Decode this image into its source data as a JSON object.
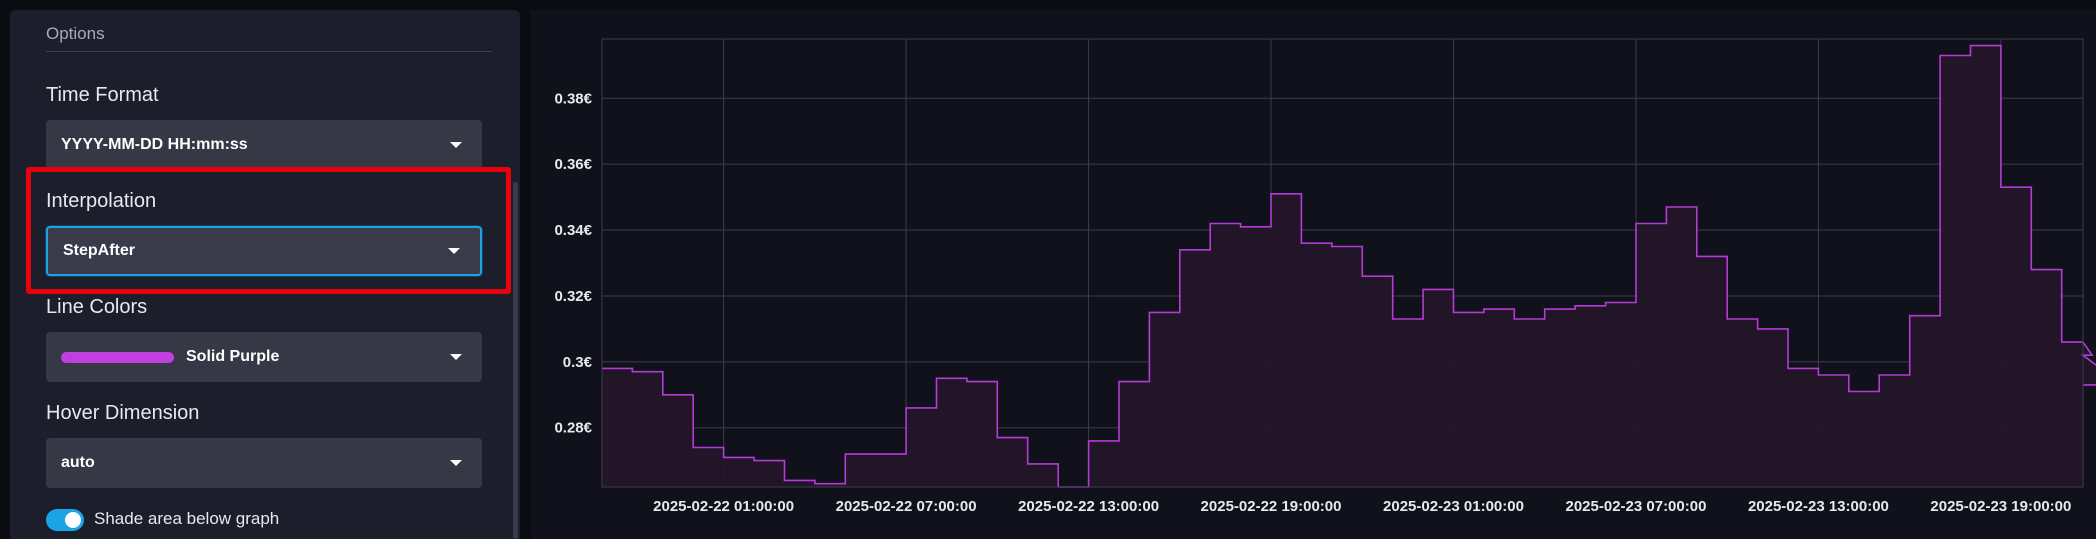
{
  "options": {
    "section_title": "Options",
    "time_format": {
      "label": "Time Format",
      "value": "YYYY-MM-DD HH:mm:ss"
    },
    "interpolation": {
      "label": "Interpolation",
      "value": "StepAfter"
    },
    "line_colors": {
      "label": "Line Colors",
      "value": "Solid Purple",
      "swatch_color": "#c13ee0"
    },
    "hover_dimension": {
      "label": "Hover Dimension",
      "value": "auto"
    },
    "shade_toggle": {
      "label": "Shade area below graph",
      "on": true
    }
  },
  "colors": {
    "accent": "#1aa4e6",
    "highlight": "#e8000d",
    "line": "#b43bd6",
    "fill": "#241629"
  },
  "chart_data": {
    "type": "line",
    "interpolation": "step-after",
    "shaded": true,
    "grid": true,
    "ylim": [
      0.262,
      0.398
    ],
    "xlim_hours": [
      -4,
      44.7
    ],
    "x_origin": "2025-02-22 01:00:00",
    "y_ticks": [
      {
        "value": 0.28,
        "label": "0.28€"
      },
      {
        "value": 0.3,
        "label": "0.3€"
      },
      {
        "value": 0.32,
        "label": "0.32€"
      },
      {
        "value": 0.34,
        "label": "0.34€"
      },
      {
        "value": 0.36,
        "label": "0.36€"
      },
      {
        "value": 0.38,
        "label": "0.38€"
      }
    ],
    "x_ticks": [
      {
        "hour": 0,
        "label": "2025-02-22 01:00:00"
      },
      {
        "hour": 6,
        "label": "2025-02-22 07:00:00"
      },
      {
        "hour": 12,
        "label": "2025-02-22 13:00:00"
      },
      {
        "hour": 18,
        "label": "2025-02-22 19:00:00"
      },
      {
        "hour": 24,
        "label": "2025-02-23 01:00:00"
      },
      {
        "hour": 30,
        "label": "2025-02-23 07:00:00"
      },
      {
        "hour": 36,
        "label": "2025-02-23 13:00:00"
      },
      {
        "hour": 42,
        "label": "2025-02-23 19:00:00"
      }
    ],
    "series": [
      {
        "values": [
          0.298,
          0.297,
          0.29,
          0.274,
          0.271,
          0.27,
          0.264,
          0.263,
          0.272,
          0.272,
          0.286,
          0.295,
          0.294,
          0.277,
          0.269,
          0.262,
          0.276,
          0.294,
          0.315,
          0.334,
          0.342,
          0.341,
          0.351,
          0.336,
          0.335,
          0.326,
          0.313,
          0.322,
          0.315,
          0.316,
          0.313,
          0.316,
          0.317,
          0.318,
          0.342,
          0.347,
          0.332,
          0.313,
          0.31,
          0.298,
          0.296,
          0.291,
          0.296,
          0.314,
          0.393,
          0.396,
          0.353,
          0.328,
          0.306,
          0.302,
          0.293
        ]
      }
    ]
  }
}
